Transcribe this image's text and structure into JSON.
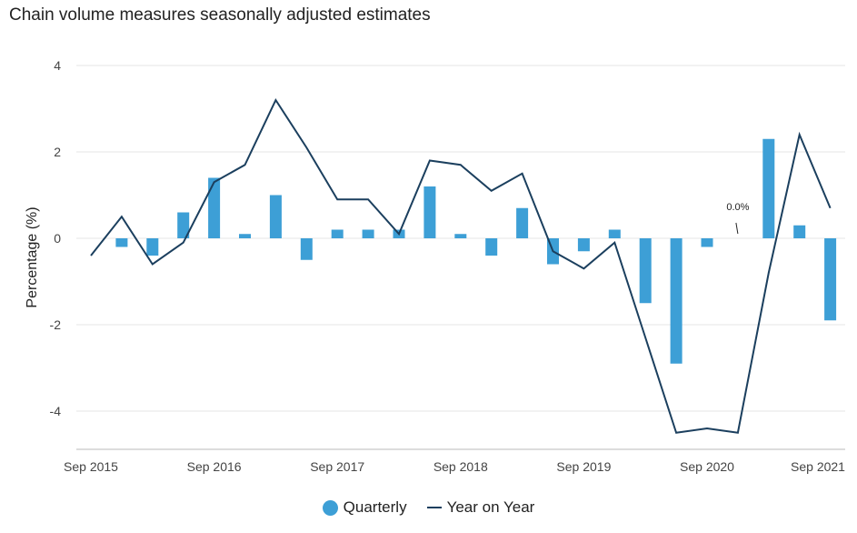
{
  "title": "Chain volume measures seasonally adjusted estimates",
  "colors": {
    "bar": "#3d9fd6",
    "line": "#1b3f5e",
    "grid": "#e6e6e6"
  },
  "chart_data": {
    "type": "bar",
    "title": "Chain volume measures seasonally adjusted estimates",
    "xlabel": "",
    "ylabel": "Percentage (%)",
    "ylim": [
      -5,
      4
    ],
    "yticks": [
      4,
      2,
      0,
      -2,
      -4
    ],
    "categories": [
      "Sep 2015",
      "Dec 2015",
      "Mar 2016",
      "Jun 2016",
      "Sep 2016",
      "Dec 2016",
      "Mar 2017",
      "Jun 2017",
      "Sep 2017",
      "Dec 2017",
      "Mar 2018",
      "Jun 2018",
      "Sep 2018",
      "Dec 2018",
      "Mar 2019",
      "Jun 2019",
      "Sep 2019",
      "Dec 2019",
      "Mar 2020",
      "Jun 2020",
      "Sep 2020",
      "Dec 2020",
      "Mar 2021",
      "Jun 2021",
      "Sep 2021",
      "Dec 2021"
    ],
    "xtick_labels": [
      "Sep 2015",
      "Sep 2016",
      "Sep 2017",
      "Sep 2018",
      "Sep 2019",
      "Sep 2020",
      "Sep 2021"
    ],
    "series": [
      {
        "name": "Quarterly",
        "type": "bar",
        "values": [
          null,
          -0.2,
          -0.4,
          0.6,
          1.4,
          0.1,
          1.0,
          -0.5,
          0.2,
          0.2,
          0.2,
          1.2,
          0.1,
          -0.4,
          0.7,
          -0.6,
          -0.3,
          0.2,
          -1.5,
          -2.9,
          -0.2,
          0.0,
          2.3,
          0.3,
          -1.9,
          null
        ]
      },
      {
        "name": "Year on Year",
        "type": "line",
        "values": [
          -0.4,
          0.5,
          -0.6,
          -0.1,
          1.3,
          1.7,
          3.2,
          2.1,
          0.9,
          0.9,
          0.1,
          1.8,
          1.7,
          1.1,
          1.5,
          -0.3,
          -0.7,
          -0.1,
          -2.3,
          -4.5,
          -4.4,
          -4.5,
          -0.8,
          2.4,
          0.7,
          null
        ]
      }
    ],
    "annotations": [
      {
        "category": "Dec 2020",
        "text": "0.0%"
      }
    ],
    "legend": "bottom-center"
  },
  "legend": {
    "quarterly": "Quarterly",
    "year_on_year": "Year on Year"
  }
}
